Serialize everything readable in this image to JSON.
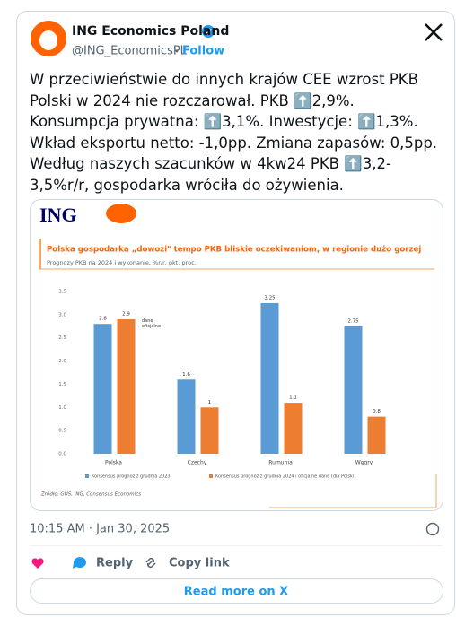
{
  "account": {
    "name": "ING Economics Poland",
    "handle": "@ING_EconomicsPL",
    "follow": "Follow"
  },
  "tweet_text": "W przeciwieństwie do innych krajów CEE wzrost PKB Polski w 2024 nie rozczarował. PKB ⬆️2,9%. Konsumpcja prywatna: ⬆️3,1%. Inwestycje: ⬆️1,3%. Wkład eksportu netto: -1,0pp. Zmiana zapasów: 0,5pp. Według naszych szacunków w 4kw24 PKB ⬆️3,2-3,5%r/r, gospodarka wróciła do ożywienia.",
  "image_logo": "ING",
  "chart_data": {
    "type": "bar",
    "title": "Polska gospodarka „dowozi\" tempo PKB bliskie oczekiwaniom, w regionie dużo gorzej",
    "subtitle": "Prognozy PKB na 2024 i wykonanie, %r/r, pkt. proc.",
    "categories": [
      "Polska",
      "Czechy",
      "Rumunia",
      "Węgry"
    ],
    "series": [
      {
        "name": "Konsensus prognoz z grudnia 2023",
        "color": "#5b9bd5",
        "values": [
          2.8,
          1.6,
          3.25,
          2.75
        ]
      },
      {
        "name": "Konsensus prognoz z grudnia 2024 i oficjalne dane (dla Polski)",
        "color": "#ed7d31",
        "values": [
          2.9,
          1,
          1.1,
          0.8
        ]
      }
    ],
    "ylim": [
      0,
      3.5
    ],
    "yticks": [
      {
        "value": 0,
        "label": "0.0"
      },
      0.5,
      {
        "value": 1,
        "label": "1.0"
      },
      1.5,
      {
        "value": 2,
        "label": "2.0"
      },
      2.5,
      {
        "value": 3,
        "label": "3.0"
      },
      3.5
    ],
    "grid": false,
    "annotation": "dane oficjalne",
    "source": "Źródło: GUS, ING, Consensus Economics"
  },
  "timestamp": "10:15 AM · Jan 30, 2025",
  "actions": {
    "reply": "Reply",
    "copy_link": "Copy link",
    "read_more": "Read more on X"
  }
}
